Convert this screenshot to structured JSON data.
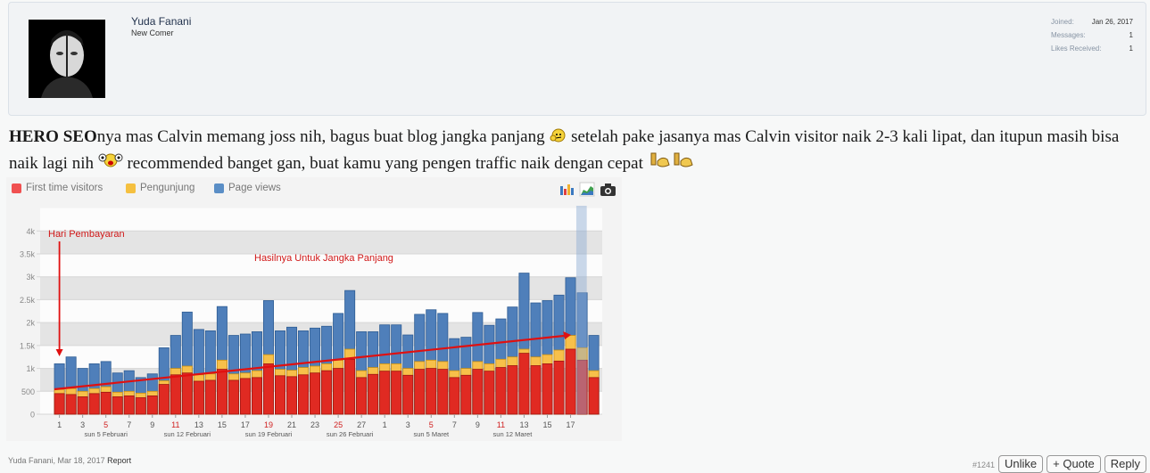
{
  "user": {
    "name": "Yuda Fanani",
    "title": "New Comer",
    "stats": [
      {
        "label": "Joined:",
        "value": "Jan 26, 2017"
      },
      {
        "label": "Messages:",
        "value": "1"
      },
      {
        "label": "Likes Received:",
        "value": "1"
      }
    ]
  },
  "message": {
    "bold": "HERO SEO",
    "part1": "nya mas Calvin memang joss nih, bagus buat blog jangka panjang",
    "part2": " setelah pake jasanya mas Calvin visitor naik 2-3 kali lipat, dan itupun masih bisa naik lagi nih",
    "part3": " recommended banget gan, buat kamu yang pengen traffic naik dengan cepat"
  },
  "chart_data": {
    "type": "bar",
    "legend": [
      {
        "name": "First time visitors",
        "color": "#f05050"
      },
      {
        "name": "Pengunjung",
        "color": "#f5c040"
      },
      {
        "name": "Page views",
        "color": "#5a8ec6"
      }
    ],
    "ylim": [
      0,
      4200
    ],
    "yticks": [
      "0",
      "500",
      "1k",
      "1.5k",
      "2k",
      "2.5k",
      "3k",
      "3.5k",
      "4k"
    ],
    "page_views": [
      1100,
      1250,
      1000,
      1100,
      1150,
      900,
      950,
      800,
      880,
      1450,
      1720,
      2230,
      1850,
      1820,
      2350,
      1720,
      1750,
      1800,
      2480,
      1820,
      1900,
      1820,
      1880,
      1920,
      2200,
      2700,
      1800,
      1800,
      1950,
      1950,
      1730,
      2180,
      2280,
      2200,
      1650,
      1680,
      2220,
      1940,
      2080,
      2340,
      3080,
      2430,
      2480,
      2600,
      2980,
      2650,
      1720
    ],
    "pengunjung": [
      540,
      560,
      500,
      560,
      600,
      480,
      500,
      460,
      500,
      730,
      1000,
      1050,
      860,
      880,
      1180,
      880,
      900,
      950,
      1300,
      980,
      960,
      1020,
      1050,
      1100,
      1180,
      1420,
      950,
      1020,
      1100,
      1100,
      1000,
      1150,
      1180,
      1150,
      950,
      1000,
      1150,
      1100,
      1200,
      1250,
      1420,
      1250,
      1300,
      1400,
      1720,
      1450,
      950
    ],
    "first_time": [
      450,
      430,
      380,
      450,
      480,
      380,
      400,
      360,
      400,
      650,
      860,
      900,
      720,
      740,
      980,
      740,
      780,
      800,
      1100,
      840,
      820,
      860,
      900,
      950,
      1000,
      1200,
      800,
      870,
      940,
      940,
      850,
      980,
      1000,
      980,
      800,
      850,
      980,
      940,
      1020,
      1060,
      1330,
      1060,
      1100,
      1160,
      1420,
      1180,
      800
    ],
    "x_tick_labels": [
      {
        "i": 0,
        "label": "1"
      },
      {
        "i": 2,
        "label": "3"
      },
      {
        "i": 4,
        "label": "5",
        "red": true
      },
      {
        "i": 6,
        "label": "7"
      },
      {
        "i": 8,
        "label": "9"
      },
      {
        "i": 10,
        "label": "11",
        "red": true
      },
      {
        "i": 12,
        "label": "13"
      },
      {
        "i": 14,
        "label": "15"
      },
      {
        "i": 16,
        "label": "17"
      },
      {
        "i": 18,
        "label": "19",
        "red": true
      },
      {
        "i": 20,
        "label": "21"
      },
      {
        "i": 22,
        "label": "23"
      },
      {
        "i": 24,
        "label": "25",
        "red": true
      },
      {
        "i": 26,
        "label": "27"
      },
      {
        "i": 28,
        "label": "1"
      },
      {
        "i": 30,
        "label": "3"
      },
      {
        "i": 32,
        "label": "5",
        "red": true
      },
      {
        "i": 34,
        "label": "7"
      },
      {
        "i": 36,
        "label": "9"
      },
      {
        "i": 38,
        "label": "11",
        "red": true
      },
      {
        "i": 40,
        "label": "13"
      },
      {
        "i": 42,
        "label": "15"
      },
      {
        "i": 44,
        "label": "17"
      }
    ],
    "week_labels": [
      {
        "i": 4,
        "label": "sun 5 Februari"
      },
      {
        "i": 11,
        "label": "sun 12 Februari"
      },
      {
        "i": 18,
        "label": "sun 19 Februari"
      },
      {
        "i": 25,
        "label": "sun 26 Februari"
      },
      {
        "i": 32,
        "label": "sun 5 Maret"
      },
      {
        "i": 39,
        "label": "sun 12 Maret"
      }
    ],
    "annotations": {
      "arrow_label": "Hari Pembayaran",
      "trend_label": "Hasilnya Untuk Jangka Panjang"
    }
  },
  "footer": {
    "author_date": "Yuda Fanani, Mar 18, 2017",
    "report": "Report",
    "post_number": "#1241",
    "unlike": "Unlike",
    "quote": "+ Quote",
    "reply": "Reply"
  },
  "icons": [
    "bar-chart-icon",
    "area-chart-icon",
    "camera-icon",
    "thinking-smiley-icon",
    "crazy-smiley-icon",
    "thumbs-up-icon"
  ]
}
